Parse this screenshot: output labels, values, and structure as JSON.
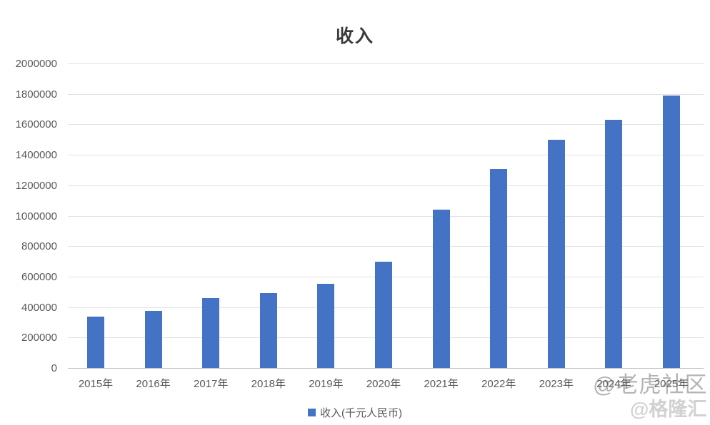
{
  "chart_data": {
    "type": "bar",
    "title": "收入",
    "categories": [
      "2015年",
      "2016年",
      "2017年",
      "2018年",
      "2019年",
      "2020年",
      "2021年",
      "2022年",
      "2023年",
      "2024年",
      "2025年"
    ],
    "values": [
      335000,
      375000,
      460000,
      490000,
      555000,
      700000,
      1040000,
      1305000,
      1500000,
      1630000,
      1790000
    ],
    "series_name": "收入(千元人民币)",
    "xlabel": "",
    "ylabel": "",
    "ylim": [
      0,
      2000000
    ],
    "ytick_step": 200000,
    "yticks": [
      "0",
      "200000",
      "400000",
      "600000",
      "800000",
      "1000000",
      "1200000",
      "1400000",
      "1600000",
      "1800000",
      "2000000"
    ],
    "grid": "horizontal",
    "legend_position": "bottom",
    "bar_color": "#4472C4",
    "tick_color": "#595959"
  },
  "legend": {
    "label": "收入(千元人民币)"
  },
  "watermarks": {
    "tiger": "@老虎社区",
    "gelonghui": "@格隆汇"
  }
}
